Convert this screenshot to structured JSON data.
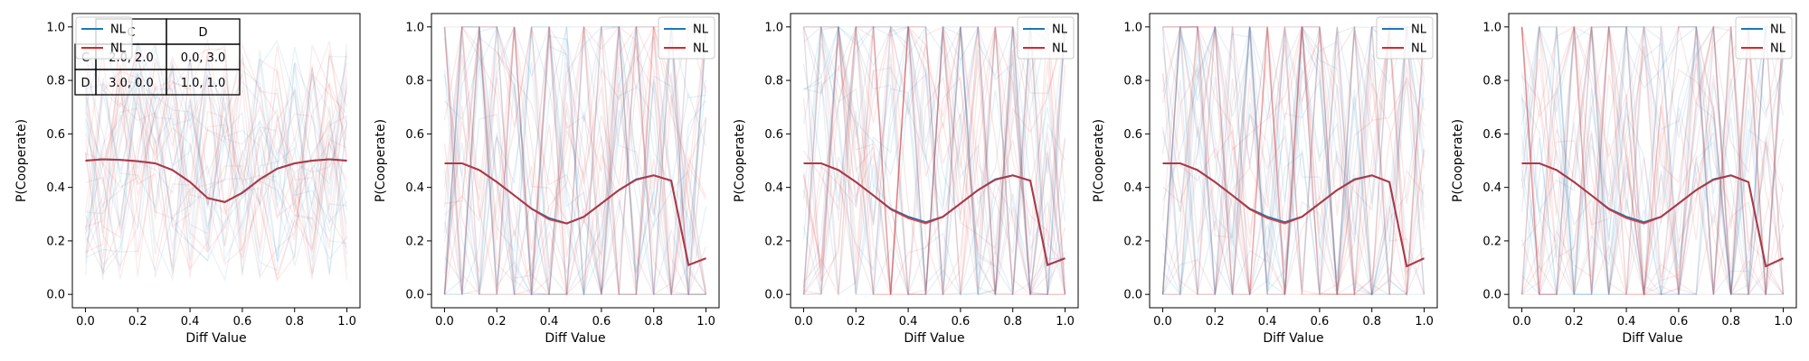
{
  "colors": {
    "blue": "#1f77b4",
    "red": "#d62728",
    "payoff_border": "#000000"
  },
  "chart_data": [
    {
      "type": "line",
      "xlabel": "Diff Value",
      "ylabel": "P(Cooperate)",
      "xlim": [
        -0.05,
        1.05
      ],
      "ylim": [
        -0.05,
        1.05
      ],
      "xticks": [
        "0.0",
        "0.2",
        "0.4",
        "0.6",
        "0.8",
        "1.0"
      ],
      "yticks": [
        "0.0",
        "0.2",
        "0.4",
        "0.6",
        "0.8",
        "1.0"
      ],
      "legend": [
        "NL",
        "NL"
      ],
      "legend_position": "top-left",
      "grid": false,
      "x": [
        0.0,
        0.067,
        0.133,
        0.2,
        0.267,
        0.333,
        0.4,
        0.467,
        0.533,
        0.6,
        0.667,
        0.733,
        0.8,
        0.867,
        0.933,
        1.0
      ],
      "series": [
        {
          "name": "NL",
          "color": "blue",
          "values": [
            0.5,
            0.505,
            0.503,
            0.498,
            0.49,
            0.465,
            0.42,
            0.36,
            0.345,
            0.38,
            0.43,
            0.47,
            0.49,
            0.5,
            0.505,
            0.5
          ]
        },
        {
          "name": "NL",
          "color": "red",
          "values": [
            0.5,
            0.505,
            0.503,
            0.498,
            0.49,
            0.465,
            0.42,
            0.36,
            0.345,
            0.38,
            0.43,
            0.47,
            0.49,
            0.5,
            0.505,
            0.5
          ]
        }
      ],
      "payoff_table": {
        "header": [
          "",
          "C",
          "D"
        ],
        "rows": [
          [
            "C",
            "2.0, 2.0",
            "0.0, 3.0"
          ],
          [
            "D",
            "3.0, 0.0",
            "1.0, 1.0"
          ]
        ]
      }
    },
    {
      "type": "line",
      "xlabel": "Diff Value",
      "ylabel": "P(Cooperate)",
      "xlim": [
        -0.05,
        1.05
      ],
      "ylim": [
        -0.05,
        1.05
      ],
      "xticks": [
        "0.0",
        "0.2",
        "0.4",
        "0.6",
        "0.8",
        "1.0"
      ],
      "yticks": [
        "0.0",
        "0.2",
        "0.4",
        "0.6",
        "0.8",
        "1.0"
      ],
      "legend": [
        "NL",
        "NL"
      ],
      "legend_position": "top-right",
      "grid": false,
      "x": [
        0.0,
        0.067,
        0.133,
        0.2,
        0.267,
        0.333,
        0.4,
        0.467,
        0.533,
        0.6,
        0.667,
        0.733,
        0.8,
        0.867,
        0.933,
        1.0
      ],
      "series": [
        {
          "name": "NL",
          "color": "blue",
          "values": [
            0.49,
            0.49,
            0.465,
            0.42,
            0.37,
            0.32,
            0.285,
            0.265,
            0.29,
            0.34,
            0.39,
            0.43,
            0.445,
            0.425,
            0.11,
            0.135
          ]
        },
        {
          "name": "NL",
          "color": "red",
          "values": [
            0.49,
            0.49,
            0.465,
            0.42,
            0.37,
            0.32,
            0.28,
            0.265,
            0.29,
            0.34,
            0.39,
            0.428,
            0.445,
            0.425,
            0.11,
            0.135
          ]
        }
      ]
    },
    {
      "type": "line",
      "xlabel": "Diff Value",
      "ylabel": "P(Cooperate)",
      "xlim": [
        -0.05,
        1.05
      ],
      "ylim": [
        -0.05,
        1.05
      ],
      "xticks": [
        "0.0",
        "0.2",
        "0.4",
        "0.6",
        "0.8",
        "1.0"
      ],
      "yticks": [
        "0.0",
        "0.2",
        "0.4",
        "0.6",
        "0.8",
        "1.0"
      ],
      "legend": [
        "NL",
        "NL"
      ],
      "legend_position": "top-right",
      "grid": false,
      "x": [
        0.0,
        0.067,
        0.133,
        0.2,
        0.267,
        0.333,
        0.4,
        0.467,
        0.533,
        0.6,
        0.667,
        0.733,
        0.8,
        0.867,
        0.933,
        1.0
      ],
      "series": [
        {
          "name": "NL",
          "color": "blue",
          "values": [
            0.49,
            0.49,
            0.465,
            0.42,
            0.37,
            0.32,
            0.29,
            0.27,
            0.29,
            0.34,
            0.39,
            0.43,
            0.445,
            0.425,
            0.11,
            0.135
          ]
        },
        {
          "name": "NL",
          "color": "red",
          "values": [
            0.49,
            0.49,
            0.465,
            0.42,
            0.37,
            0.318,
            0.285,
            0.265,
            0.29,
            0.34,
            0.39,
            0.428,
            0.445,
            0.425,
            0.11,
            0.135
          ]
        }
      ]
    },
    {
      "type": "line",
      "xlabel": "Diff Value",
      "ylabel": "P(Cooperate)",
      "xlim": [
        -0.05,
        1.05
      ],
      "ylim": [
        -0.05,
        1.05
      ],
      "xticks": [
        "0.0",
        "0.2",
        "0.4",
        "0.6",
        "0.8",
        "1.0"
      ],
      "yticks": [
        "0.0",
        "0.2",
        "0.4",
        "0.6",
        "0.8",
        "1.0"
      ],
      "legend": [
        "NL",
        "NL"
      ],
      "legend_position": "top-right",
      "grid": false,
      "x": [
        0.0,
        0.067,
        0.133,
        0.2,
        0.267,
        0.333,
        0.4,
        0.467,
        0.533,
        0.6,
        0.667,
        0.733,
        0.8,
        0.867,
        0.933,
        1.0
      ],
      "series": [
        {
          "name": "NL",
          "color": "blue",
          "values": [
            0.49,
            0.49,
            0.465,
            0.42,
            0.37,
            0.32,
            0.29,
            0.27,
            0.29,
            0.34,
            0.39,
            0.43,
            0.445,
            0.42,
            0.105,
            0.135
          ]
        },
        {
          "name": "NL",
          "color": "red",
          "values": [
            0.49,
            0.49,
            0.465,
            0.42,
            0.37,
            0.318,
            0.285,
            0.265,
            0.29,
            0.34,
            0.39,
            0.428,
            0.445,
            0.42,
            0.105,
            0.135
          ]
        }
      ]
    },
    {
      "type": "line",
      "xlabel": "Diff Value",
      "ylabel": "P(Cooperate)",
      "xlim": [
        -0.05,
        1.05
      ],
      "ylim": [
        -0.05,
        1.05
      ],
      "xticks": [
        "0.0",
        "0.2",
        "0.4",
        "0.6",
        "0.8",
        "1.0"
      ],
      "yticks": [
        "0.0",
        "0.2",
        "0.4",
        "0.6",
        "0.8",
        "1.0"
      ],
      "legend": [
        "NL",
        "NL"
      ],
      "legend_position": "top-right",
      "grid": false,
      "x": [
        0.0,
        0.067,
        0.133,
        0.2,
        0.267,
        0.333,
        0.4,
        0.467,
        0.533,
        0.6,
        0.667,
        0.733,
        0.8,
        0.867,
        0.933,
        1.0
      ],
      "series": [
        {
          "name": "NL",
          "color": "blue",
          "values": [
            0.49,
            0.49,
            0.465,
            0.42,
            0.37,
            0.32,
            0.29,
            0.27,
            0.29,
            0.34,
            0.39,
            0.43,
            0.445,
            0.42,
            0.105,
            0.135
          ]
        },
        {
          "name": "NL",
          "color": "red",
          "values": [
            0.49,
            0.49,
            0.465,
            0.42,
            0.37,
            0.318,
            0.285,
            0.265,
            0.29,
            0.34,
            0.39,
            0.428,
            0.445,
            0.42,
            0.105,
            0.135
          ]
        }
      ]
    }
  ]
}
